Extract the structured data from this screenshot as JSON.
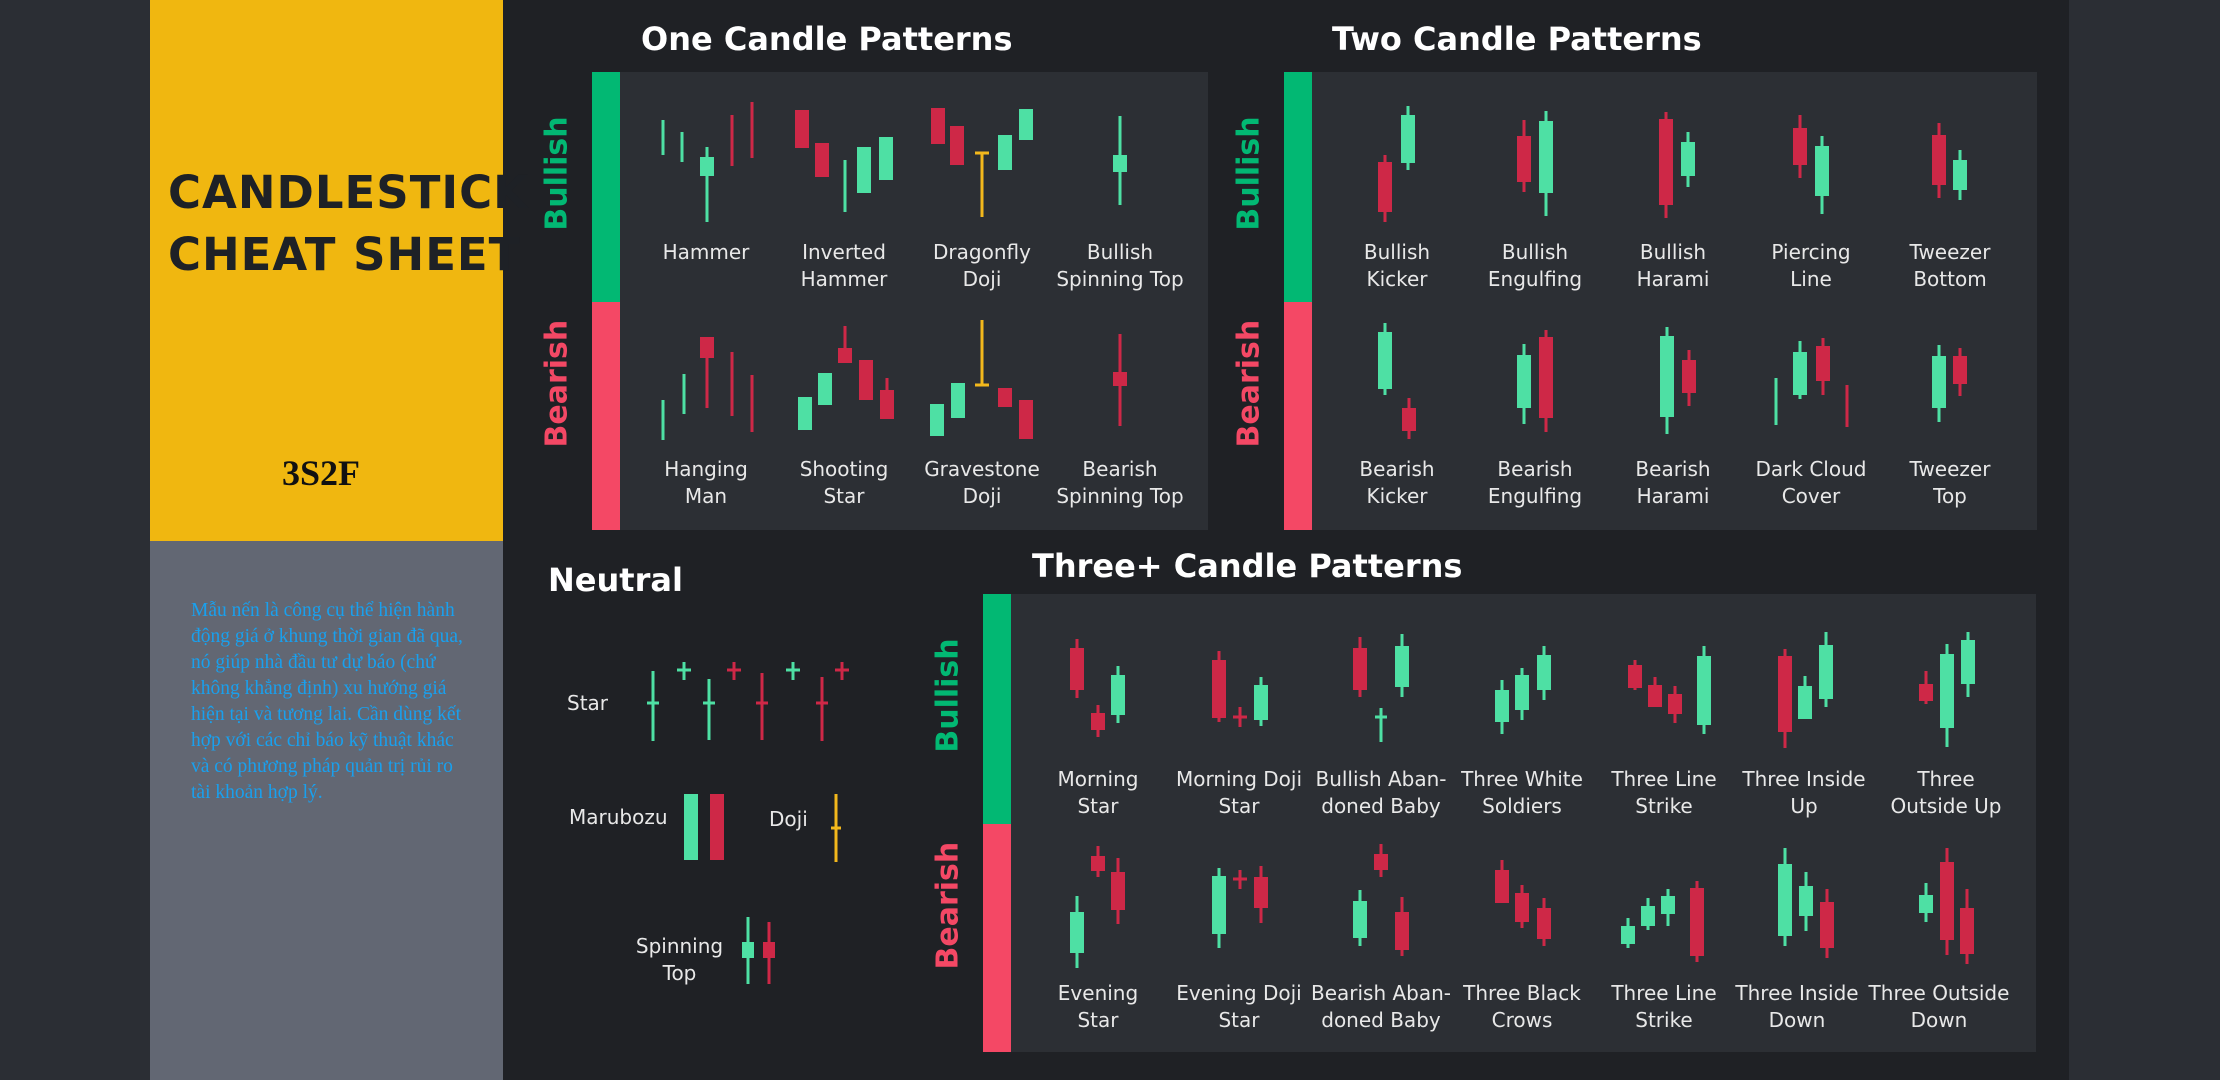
{
  "sidebar": {
    "title_line1": "CANDLESTICK",
    "title_line2": "CHEAT SHEET",
    "brand": "3S2F",
    "description": "Mẫu nến là công cụ thể hiện hành động giá ở khung thời gian đã qua, nó giúp nhà đầu tư dự báo (chứ không khẳng định) xu hướng giá hiện tại và tương lai. Cần dùng kết hợp với các chỉ báo kỹ thuật khác và có phương pháp quản trị rủi ro tài khoản hợp lý."
  },
  "colors": {
    "bull": "#4ee0a4",
    "bear": "#ce2847",
    "doji": "#f3b81c",
    "bull_bar": "#02b873",
    "bear_bar": "#f44865"
  },
  "one": {
    "title": "One Candle Patterns",
    "bullish": "Bullish",
    "bearish": "Bearish",
    "bull_items": [
      "Hammer",
      "Inverted\nHammer",
      "Dragonfly\nDoji",
      "Bullish\nSpinning Top"
    ],
    "bear_items": [
      "Hanging\nMan",
      "Shooting\nStar",
      "Gravestone\nDoji",
      "Bearish\nSpinning Top"
    ]
  },
  "two": {
    "title": "Two Candle Patterns",
    "bullish": "Bullish",
    "bearish": "Bearish",
    "bull_items": [
      "Bullish\nKicker",
      "Bullish\nEngulfing",
      "Bullish\nHarami",
      "Piercing\nLine",
      "Tweezer\nBottom"
    ],
    "bear_items": [
      "Bearish\nKicker",
      "Bearish\nEngulfing",
      "Bearish\nHarami",
      "Dark Cloud\nCover",
      "Tweezer\nTop"
    ]
  },
  "neutral": {
    "title": "Neutral",
    "star": "Star",
    "marubozu": "Marubozu",
    "doji": "Doji",
    "spinning_top": "Spinning\nTop"
  },
  "three": {
    "title": "Three+ Candle Patterns",
    "bullish": "Bullish",
    "bearish": "Bearish",
    "bull_items": [
      "Morning\nStar",
      "Morning Doji\nStar",
      "Bullish Aban-\ndoned Baby",
      "Three White\nSoldiers",
      "Three Line\nStrike",
      "Three Inside\nUp",
      "Three\nOutside Up"
    ],
    "bear_items": [
      "Evening\nStar",
      "Evening Doji\nStar",
      "Bearish Aban-\ndoned Baby",
      "Three Black\nCrows",
      "Three Line\nStrike",
      "Three Inside\nDown",
      "Three Outside\nDown"
    ]
  }
}
